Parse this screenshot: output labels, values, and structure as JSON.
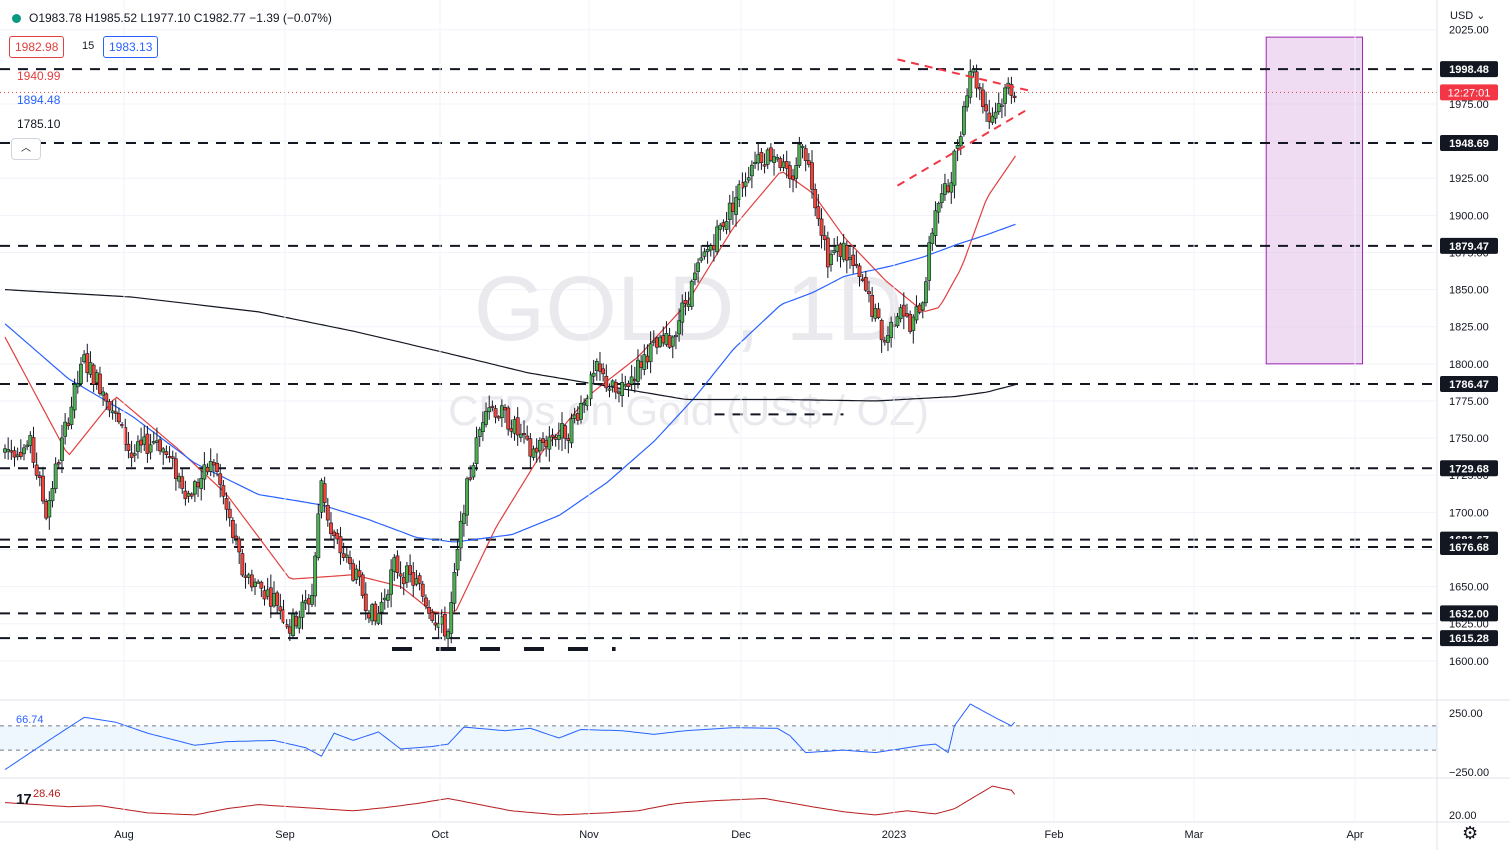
{
  "header": {
    "ohlc": "O1983.78 H1985.52 L1977.10 C1982.77 −1.39 (−0.07%)",
    "bid": "1982.98",
    "spread": "15",
    "ask": "1983.13",
    "ma_values": [
      {
        "label": "1940.99",
        "color": "#e0403f"
      },
      {
        "label": "1894.48",
        "color": "#2962ff"
      },
      {
        "label": "1785.10",
        "color": "#131722"
      }
    ],
    "currency": "USD"
  },
  "watermark": {
    "line1": "GOLD, 1D",
    "line2": "CFDs on Gold (US$ / OZ)"
  },
  "chart_data": {
    "type": "candlestick",
    "y_ticks": [
      2025,
      1975,
      1950,
      1925,
      1900,
      1875,
      1850,
      1825,
      1800,
      1775,
      1750,
      1725,
      1700,
      1675,
      1650,
      1625,
      1600
    ],
    "ylim": [
      1585,
      2040
    ],
    "x_ticks": [
      "Aug",
      "Sep",
      "Oct",
      "Nov",
      "Dec",
      "2023",
      "Feb",
      "Mar",
      "Apr"
    ],
    "horizontal_levels": [
      "1998.48",
      "1948.69",
      "1879.47",
      "1786.47",
      "1729.68",
      "1681.67",
      "1676.68",
      "1632.00",
      "1615.28"
    ],
    "current_price": 1982.77,
    "countdown": "12:27:01",
    "sessions": 235,
    "candle_anchors": [
      [
        0,
        1742
      ],
      [
        8,
        1745
      ],
      [
        13,
        1700
      ],
      [
        20,
        1765
      ],
      [
        25,
        1802
      ],
      [
        32,
        1780
      ],
      [
        40,
        1738
      ],
      [
        48,
        1750
      ],
      [
        58,
        1712
      ],
      [
        66,
        1734
      ],
      [
        75,
        1660
      ],
      [
        86,
        1640
      ],
      [
        90,
        1622
      ],
      [
        97,
        1645
      ],
      [
        100,
        1722
      ],
      [
        103,
        1685
      ],
      [
        110,
        1660
      ],
      [
        117,
        1626
      ],
      [
        123,
        1664
      ],
      [
        130,
        1652
      ],
      [
        137,
        1625
      ],
      [
        140,
        1620
      ],
      [
        145,
        1706
      ],
      [
        152,
        1775
      ],
      [
        160,
        1760
      ],
      [
        166,
        1740
      ],
      [
        173,
        1752
      ],
      [
        178,
        1755
      ],
      [
        187,
        1795
      ],
      [
        194,
        1778
      ],
      [
        203,
        1808
      ],
      [
        210,
        1815
      ],
      [
        220,
        1868
      ],
      [
        230,
        1908
      ],
      [
        237,
        1940
      ],
      [
        244,
        1942
      ],
      [
        248,
        1920
      ],
      [
        252,
        1952
      ],
      [
        256,
        1912
      ],
      [
        260,
        1872
      ],
      [
        265,
        1878
      ],
      [
        272,
        1848
      ],
      [
        278,
        1815
      ],
      [
        283,
        1842
      ],
      [
        286,
        1822
      ],
      [
        290,
        1845
      ],
      [
        294,
        1906
      ],
      [
        298,
        1918
      ],
      [
        302,
        1960
      ],
      [
        305,
        2000
      ],
      [
        308,
        1985
      ],
      [
        311,
        1965
      ],
      [
        314,
        1975
      ],
      [
        317,
        1987
      ],
      [
        319,
        1985
      ]
    ],
    "moving_averages": [
      {
        "name": "1940.99",
        "color": "#e0403f",
        "anchors": [
          [
            0,
            1818
          ],
          [
            20,
            1738
          ],
          [
            35,
            1778
          ],
          [
            55,
            1742
          ],
          [
            70,
            1712
          ],
          [
            90,
            1655
          ],
          [
            110,
            1658
          ],
          [
            125,
            1650
          ],
          [
            135,
            1633
          ],
          [
            142,
            1632
          ],
          [
            155,
            1690
          ],
          [
            170,
            1742
          ],
          [
            185,
            1780
          ],
          [
            200,
            1805
          ],
          [
            215,
            1840
          ],
          [
            230,
            1892
          ],
          [
            245,
            1930
          ],
          [
            255,
            1915
          ],
          [
            265,
            1885
          ],
          [
            278,
            1856
          ],
          [
            290,
            1835
          ],
          [
            295,
            1838
          ],
          [
            302,
            1865
          ],
          [
            310,
            1912
          ],
          [
            319,
            1940
          ]
        ]
      },
      {
        "name": "1894.48",
        "color": "#2962ff",
        "anchors": [
          [
            0,
            1827
          ],
          [
            20,
            1790
          ],
          [
            40,
            1765
          ],
          [
            60,
            1733
          ],
          [
            80,
            1712
          ],
          [
            100,
            1705
          ],
          [
            115,
            1695
          ],
          [
            130,
            1683
          ],
          [
            142,
            1680
          ],
          [
            160,
            1685
          ],
          [
            175,
            1698
          ],
          [
            190,
            1720
          ],
          [
            205,
            1748
          ],
          [
            218,
            1778
          ],
          [
            230,
            1810
          ],
          [
            245,
            1840
          ],
          [
            255,
            1848
          ],
          [
            265,
            1859
          ],
          [
            280,
            1866
          ],
          [
            290,
            1872
          ],
          [
            300,
            1880
          ],
          [
            310,
            1887
          ],
          [
            319,
            1894
          ]
        ]
      },
      {
        "name": "1785.10",
        "color": "#131722",
        "anchors": [
          [
            0,
            1850
          ],
          [
            40,
            1845
          ],
          [
            80,
            1835
          ],
          [
            110,
            1822
          ],
          [
            140,
            1807
          ],
          [
            165,
            1794
          ],
          [
            190,
            1785
          ],
          [
            215,
            1776
          ],
          [
            245,
            1776
          ],
          [
            275,
            1775
          ],
          [
            300,
            1778
          ],
          [
            310,
            1781
          ],
          [
            319,
            1786
          ]
        ]
      }
    ],
    "triangle": {
      "upper": [
        [
          282,
          2005
        ],
        [
          311,
          1984
        ]
      ],
      "lower": [
        [
          282,
          1920
        ],
        [
          311,
          1972
        ]
      ]
    },
    "lower_support_marks_price": 1608,
    "nov_support_price": 1766,
    "highlight_box": {
      "x0": 294,
      "x1": 315,
      "y0": 2020,
      "y1": 1800
    },
    "rsi_panel": {
      "label": "66.74",
      "ticks": [
        "250.00",
        "−250.00"
      ],
      "anchors": [
        [
          0,
          -260
        ],
        [
          15,
          0
        ],
        [
          25,
          170
        ],
        [
          35,
          130
        ],
        [
          45,
          40
        ],
        [
          60,
          -60
        ],
        [
          70,
          -30
        ],
        [
          85,
          -20
        ],
        [
          95,
          -80
        ],
        [
          100,
          -150
        ],
        [
          104,
          40
        ],
        [
          110,
          -20
        ],
        [
          118,
          50
        ],
        [
          125,
          -90
        ],
        [
          135,
          -70
        ],
        [
          140,
          -50
        ],
        [
          145,
          90
        ],
        [
          158,
          60
        ],
        [
          166,
          80
        ],
        [
          175,
          0
        ],
        [
          182,
          70
        ],
        [
          195,
          60
        ],
        [
          205,
          30
        ],
        [
          215,
          60
        ],
        [
          230,
          85
        ],
        [
          244,
          80
        ],
        [
          248,
          20
        ],
        [
          253,
          -120
        ],
        [
          265,
          -100
        ],
        [
          275,
          -120
        ],
        [
          290,
          -60
        ],
        [
          294,
          -50
        ],
        [
          298,
          -120
        ],
        [
          300,
          100
        ],
        [
          305,
          280
        ],
        [
          312,
          180
        ],
        [
          318,
          100
        ],
        [
          319,
          130
        ]
      ]
    },
    "stoch_panel": {
      "label": "28.46",
      "ticks": [
        "20.00"
      ],
      "anchors": [
        [
          0,
          30
        ],
        [
          10,
          28
        ],
        [
          20,
          26
        ],
        [
          30,
          27
        ],
        [
          45,
          20
        ],
        [
          60,
          18
        ],
        [
          70,
          24
        ],
        [
          80,
          28
        ],
        [
          90,
          26
        ],
        [
          100,
          24
        ],
        [
          110,
          22
        ],
        [
          120,
          25
        ],
        [
          130,
          29
        ],
        [
          140,
          34
        ],
        [
          150,
          28
        ],
        [
          160,
          22
        ],
        [
          175,
          18
        ],
        [
          190,
          20
        ],
        [
          200,
          22
        ],
        [
          210,
          28
        ],
        [
          215,
          30
        ],
        [
          225,
          32
        ],
        [
          240,
          34
        ],
        [
          255,
          26
        ],
        [
          265,
          21
        ],
        [
          275,
          18
        ],
        [
          285,
          22
        ],
        [
          294,
          19
        ],
        [
          300,
          24
        ],
        [
          306,
          35
        ],
        [
          312,
          46
        ],
        [
          318,
          42
        ],
        [
          319,
          38
        ]
      ]
    }
  }
}
